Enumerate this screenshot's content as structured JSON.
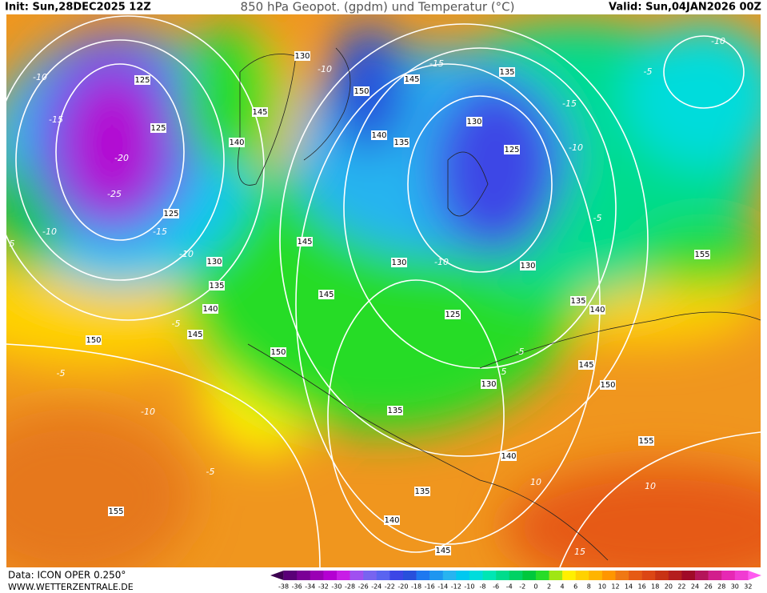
{
  "header": {
    "init": "Init: Sun,28DEC2025 12Z",
    "title": "850 hPa Geopot. (gpdm) und Temperatur (°C)",
    "valid": "Valid: Sun,04JAN2026 00Z"
  },
  "footer": {
    "source": "Data: ICON OPER 0.250°",
    "website": "WWW.WETTERZENTRALE.DE"
  },
  "color_scale": {
    "labels": [
      -38,
      -36,
      -34,
      -32,
      -30,
      -28,
      -26,
      -24,
      -22,
      -20,
      -18,
      -16,
      -14,
      -12,
      -10,
      -8,
      -6,
      -4,
      -2,
      0,
      2,
      4,
      6,
      8,
      10,
      12,
      14,
      16,
      18,
      20,
      22,
      24,
      26,
      28,
      30,
      32
    ],
    "colors": [
      "#3c0050",
      "#5a0078",
      "#7a0096",
      "#9a00b4",
      "#b400d2",
      "#c81ee6",
      "#a050f0",
      "#7864f0",
      "#5a64f0",
      "#3c46e6",
      "#2850dc",
      "#1e78f0",
      "#1e96f0",
      "#28b4f0",
      "#00c8f0",
      "#00dcdc",
      "#00e6b4",
      "#00dc8c",
      "#00d264",
      "#00c83c",
      "#28dc28",
      "#a0e614",
      "#fff000",
      "#ffd200",
      "#ffb400",
      "#ff9600",
      "#f07814",
      "#e65a14",
      "#dc4614",
      "#c83214",
      "#b41e1e",
      "#a00a28",
      "#b4145a",
      "#d21e8c",
      "#e628b4",
      "#f03cd2",
      "#ff5af0"
    ]
  },
  "geopotential_labels": [
    125,
    125,
    125,
    130,
    135,
    140,
    145,
    150,
    145,
    140,
    150,
    145,
    135,
    130,
    140,
    135,
    125,
    145,
    145,
    130,
    130,
    125,
    150,
    135,
    140,
    145,
    150,
    130,
    135,
    140,
    155,
    135,
    140,
    145,
    155,
    155,
    130
  ],
  "temperature_labels": [
    -10,
    -15,
    -20,
    -25,
    -10,
    -15,
    -10,
    -5,
    -5,
    -10,
    -5,
    -10,
    -15,
    -15,
    -10,
    -5,
    -10,
    -5,
    -5,
    -10,
    5,
    10,
    10,
    15,
    5
  ]
}
